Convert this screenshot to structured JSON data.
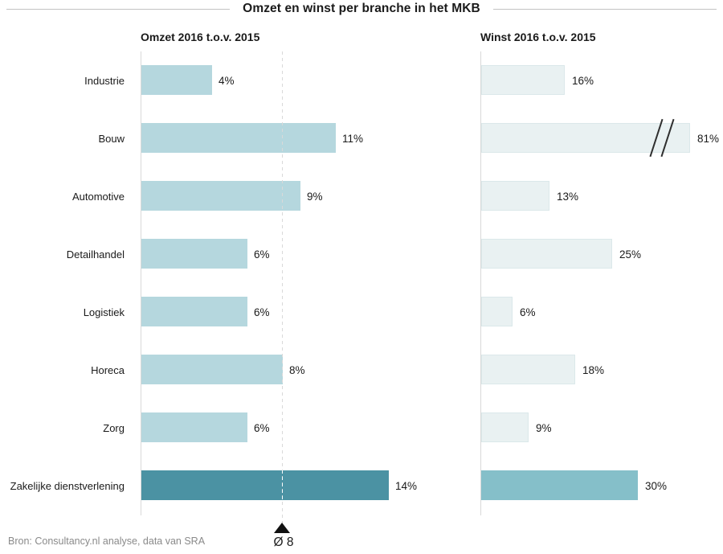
{
  "title": "Omzet en winst per branche in het MKB",
  "source": "Bron: Consultancy.nl analyse, data van SRA",
  "chart_data": {
    "type": "bar",
    "orientation": "horizontal",
    "categories": [
      "Industrie",
      "Bouw",
      "Automotive",
      "Detailhandel",
      "Logistiek",
      "Horeca",
      "Zorg",
      "Zakelijke dienstverlening"
    ],
    "series": [
      {
        "name": "Omzet 2016 t.o.v. 2015",
        "values": [
          4,
          11,
          9,
          6,
          6,
          8,
          6,
          14
        ],
        "labels": [
          "4%",
          "11%",
          "9%",
          "6%",
          "6%",
          "8%",
          "6%",
          "14%"
        ]
      },
      {
        "name": "Winst 2016 t.o.v. 2015",
        "values": [
          16,
          81,
          13,
          25,
          6,
          18,
          9,
          30
        ],
        "labels": [
          "16%",
          "81%",
          "13%",
          "25%",
          "6%",
          "18%",
          "9%",
          "30%"
        ],
        "axis_break": {
          "category": "Bouw",
          "display_value": 40
        }
      }
    ],
    "highlight_category": "Zakelijke dienstverlening",
    "average_marker": {
      "series": "Omzet 2016 t.o.v. 2015",
      "value": 8,
      "label": "Ø 8",
      "marker": "triangle-up"
    },
    "value_axis_labels_visible": false,
    "grid": "off",
    "colors": {
      "omzet_bar": "#b5d7de",
      "omzet_highlight_bar": "#4b92a3",
      "winst_bar": "#e9f1f2",
      "winst_bar_border": "#dbe8ea",
      "winst_highlight_bar": "#85bfc9",
      "axis_line": "#d9d9d9",
      "dashed_line": "#d9d9d9",
      "text": "#1a1a1a",
      "source_text": "#8a8a8a"
    }
  }
}
